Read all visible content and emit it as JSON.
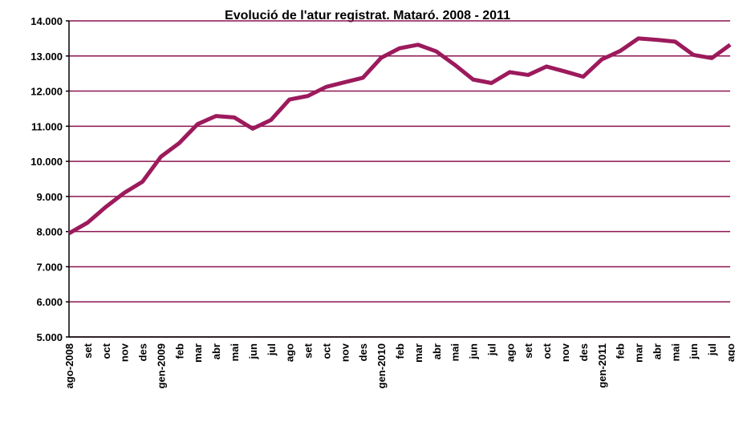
{
  "chart_data": {
    "type": "line",
    "title": "Evolució de l'atur registrat. Mataró. 2008 - 2011",
    "categories": [
      "ago-2008",
      "set",
      "oct",
      "nov",
      "des",
      "gen-2009",
      "feb",
      "mar",
      "abr",
      "mai",
      "jun",
      "jul",
      "ago",
      "set",
      "oct",
      "nov",
      "des",
      "gen-2010",
      "feb",
      "mar",
      "abr",
      "mai",
      "jun",
      "jul",
      "ago",
      "set",
      "oct",
      "nov",
      "des",
      "gen-2011",
      "feb",
      "mar",
      "abr",
      "mai",
      "jun",
      "jul",
      "ago"
    ],
    "series": [
      {
        "color": "#9c1a5c",
        "values": [
          7950,
          8250,
          8700,
          9100,
          9420,
          10130,
          10520,
          11060,
          11290,
          11250,
          10930,
          11180,
          11760,
          11860,
          12120,
          12250,
          12380,
          12950,
          13220,
          13320,
          13130,
          12750,
          12330,
          12230,
          12540,
          12460,
          12700,
          12560,
          12410,
          12900,
          13140,
          13500,
          13460,
          13410,
          13030,
          12940,
          13320
        ]
      }
    ],
    "ylim": [
      5000,
      14000
    ],
    "yticks": [
      {
        "value": 5000,
        "label": "5.000"
      },
      {
        "value": 6000,
        "label": "6.000"
      },
      {
        "value": 7000,
        "label": "7.000"
      },
      {
        "value": 8000,
        "label": "8.000"
      },
      {
        "value": 9000,
        "label": "9.000"
      },
      {
        "value": 10000,
        "label": "10.000"
      },
      {
        "value": 11000,
        "label": "11.000"
      },
      {
        "value": 12000,
        "label": "12.000"
      },
      {
        "value": 13000,
        "label": "13.000"
      },
      {
        "value": 14000,
        "label": "14.000"
      }
    ],
    "grid": true,
    "grid_color": "#8c1450"
  }
}
